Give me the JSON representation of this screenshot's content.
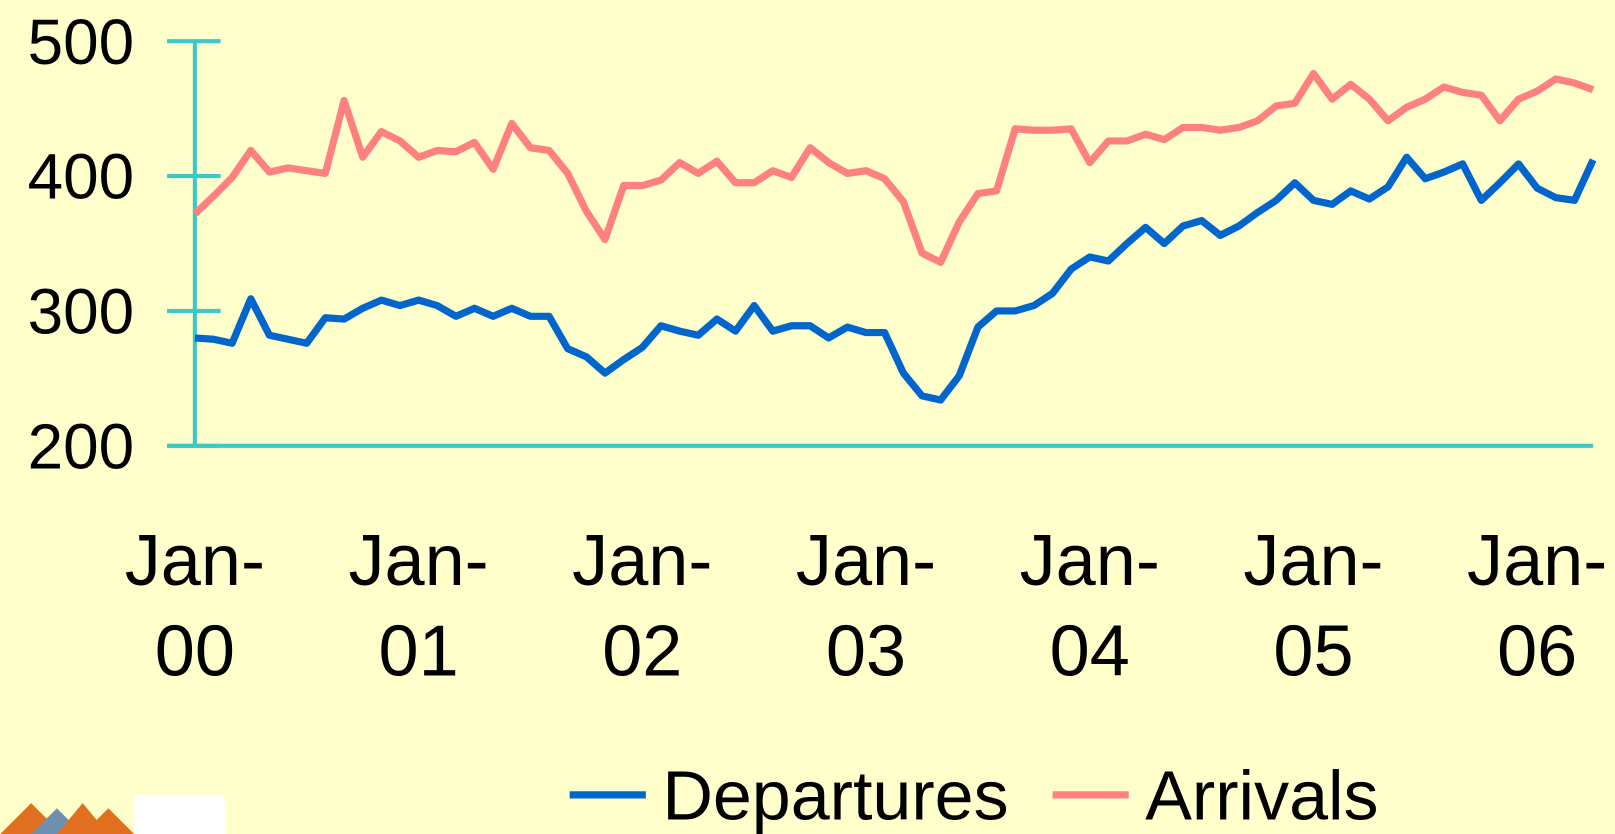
{
  "chart_data": {
    "type": "line",
    "categories": [
      "Jan-00",
      null,
      null,
      null,
      null,
      null,
      null,
      null,
      null,
      null,
      null,
      null,
      "Jan-01",
      null,
      null,
      null,
      null,
      null,
      null,
      null,
      null,
      null,
      null,
      null,
      "Jan-02",
      null,
      null,
      null,
      null,
      null,
      null,
      null,
      null,
      null,
      null,
      null,
      "Jan-03",
      null,
      null,
      null,
      null,
      null,
      null,
      null,
      null,
      null,
      null,
      null,
      "Jan-04",
      null,
      null,
      null,
      null,
      null,
      null,
      null,
      null,
      null,
      null,
      null,
      "Jan-05",
      null,
      null,
      null,
      null,
      null,
      null,
      null,
      null,
      null,
      null,
      null,
      "Jan-06",
      null,
      null,
      null
    ],
    "series": [
      {
        "name": "Departures",
        "color": "#0066cc",
        "values": [
          280,
          279,
          276,
          309,
          282,
          279,
          276,
          295,
          294,
          302,
          308,
          304,
          308,
          304,
          296,
          302,
          296,
          302,
          296,
          296,
          272,
          266,
          254,
          264,
          273,
          289,
          285,
          282,
          294,
          285,
          304,
          285,
          289,
          289,
          280,
          288,
          284,
          284,
          254,
          237,
          234,
          252,
          288,
          300,
          300,
          304,
          313,
          331,
          340,
          337,
          350,
          362,
          350,
          363,
          367,
          356,
          363,
          373,
          382,
          395,
          382,
          379,
          389,
          383,
          392,
          414,
          398,
          403,
          409,
          382,
          395,
          409,
          391,
          384,
          382,
          412
        ]
      },
      {
        "name": "Arrivals",
        "color": "#ff8080",
        "values": [
          372,
          385,
          399,
          419,
          403,
          406,
          404,
          402,
          456,
          414,
          433,
          426,
          414,
          419,
          418,
          425,
          405,
          439,
          421,
          419,
          402,
          374,
          353,
          393,
          393,
          397,
          410,
          402,
          411,
          395,
          395,
          404,
          399,
          421,
          410,
          402,
          404,
          398,
          381,
          343,
          336,
          366,
          387,
          389,
          435,
          434,
          434,
          435,
          410,
          426,
          426,
          431,
          427,
          436,
          436,
          434,
          436,
          441,
          452,
          454,
          476,
          457,
          468,
          457,
          441,
          451,
          457,
          466,
          462,
          460,
          441,
          457,
          463,
          472,
          469,
          464
        ]
      }
    ],
    "ylim": [
      200,
      500
    ],
    "yticks": [
      200,
      300,
      400,
      500
    ],
    "axis_color": "#3cc8c8",
    "legend": "bottom"
  }
}
